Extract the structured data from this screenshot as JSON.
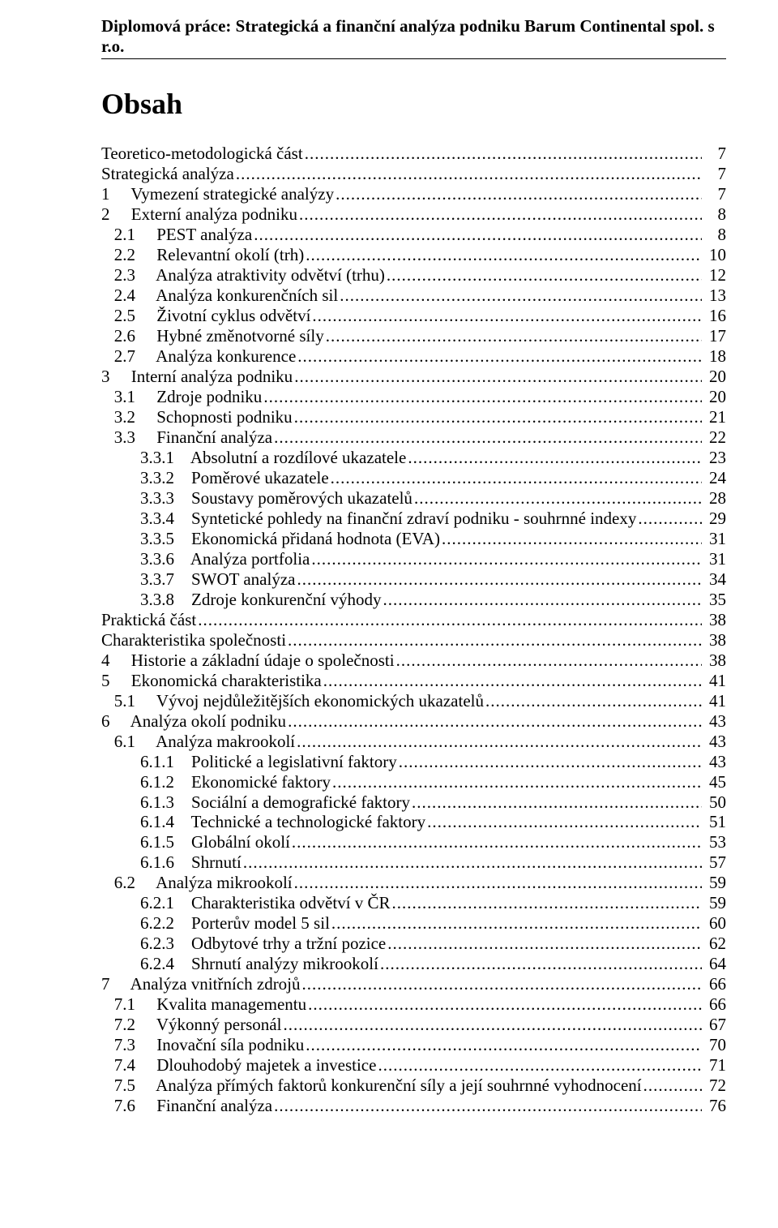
{
  "header": "Diplomová práce: Strategická a finanční analýza podniku Barum Continental spol. s r.o.",
  "title": "Obsah",
  "fonts": {
    "family": "Times New Roman",
    "header_size_pt": 16,
    "title_size_pt": 27,
    "toc_size_pt": 16,
    "color": "#000000",
    "background": "#ffffff"
  },
  "toc": [
    {
      "label": "Teoretico-metodologická část",
      "page": "7",
      "indent": "ind0"
    },
    {
      "label": "Strategická analýza",
      "page": "7",
      "indent": "ind0"
    },
    {
      "label": "1     Vymezení strategické analýzy",
      "page": "7",
      "indent": "ind1n"
    },
    {
      "label": "2     Externí analýza podniku",
      "page": "8",
      "indent": "ind1n"
    },
    {
      "label": "2.1",
      "title": "PEST analýza",
      "page": "8",
      "indent": "ind2n"
    },
    {
      "label": "2.2",
      "title": "Relevantní okolí (trh)",
      "page": "10",
      "indent": "ind2n"
    },
    {
      "label": "2.3",
      "title": "Analýza atraktivity odvětví (trhu)",
      "page": "12",
      "indent": "ind2n"
    },
    {
      "label": "2.4",
      "title": "Analýza konkurenčních sil",
      "page": "13",
      "indent": "ind2n"
    },
    {
      "label": "2.5",
      "title": "Životní cyklus odvětví",
      "page": "16",
      "indent": "ind2n"
    },
    {
      "label": "2.6",
      "title": "Hybné změnotvorné síly",
      "page": "17",
      "indent": "ind2n"
    },
    {
      "label": "2.7",
      "title": "Analýza konkurence",
      "page": "18",
      "indent": "ind2n"
    },
    {
      "label": "3     Interní analýza podniku",
      "page": "20",
      "indent": "ind1n"
    },
    {
      "label": "3.1",
      "title": "Zdroje podniku",
      "page": "20",
      "indent": "ind2n"
    },
    {
      "label": "3.2",
      "title": "Schopnosti podniku",
      "page": "21",
      "indent": "ind2n"
    },
    {
      "label": "3.3",
      "title": "Finanční analýza",
      "page": "22",
      "indent": "ind2n"
    },
    {
      "label": "3.3.1",
      "title": "Absolutní a rozdílové ukazatele",
      "page": "23",
      "indent": "indText"
    },
    {
      "label": "3.3.2",
      "title": "Poměrové ukazatele",
      "page": "24",
      "indent": "indText"
    },
    {
      "label": "3.3.3",
      "title": "Soustavy poměrových ukazatelů",
      "page": "28",
      "indent": "indText"
    },
    {
      "label": "3.3.4",
      "title": "Syntetické pohledy na finanční zdraví podniku - souhrnné indexy",
      "page": "29",
      "indent": "indText"
    },
    {
      "label": "3.3.5",
      "title": "Ekonomická přidaná hodnota (EVA)",
      "page": "31",
      "indent": "indText"
    },
    {
      "label": "3.3.6",
      "title": "Analýza portfolia",
      "page": "31",
      "indent": "indText"
    },
    {
      "label": "3.3.7",
      "title": "SWOT analýza",
      "page": "34",
      "indent": "indText"
    },
    {
      "label": "3.3.8",
      "title": "Zdroje konkurenční výhody",
      "page": "35",
      "indent": "indText"
    },
    {
      "label": "Praktická část",
      "page": "38",
      "indent": "ind0"
    },
    {
      "label": "Charakteristika společnosti",
      "page": "38",
      "indent": "ind0"
    },
    {
      "label": "4     Historie a základní údaje o společnosti",
      "page": "38",
      "indent": "ind1n"
    },
    {
      "label": "5     Ekonomická charakteristika",
      "page": "41",
      "indent": "ind1n"
    },
    {
      "label": "5.1",
      "title": "Vývoj nejdůležitějších ekonomických ukazatelů",
      "page": "41",
      "indent": "ind2n"
    },
    {
      "label": "6     Analýza okolí podniku",
      "page": "43",
      "indent": "ind1n"
    },
    {
      "label": "6.1",
      "title": "Analýza makrookolí",
      "page": "43",
      "indent": "ind2n"
    },
    {
      "label": "6.1.1",
      "title": "Politické a legislativní faktory",
      "page": "43",
      "indent": "indText"
    },
    {
      "label": "6.1.2",
      "title": "Ekonomické faktory",
      "page": "45",
      "indent": "indText"
    },
    {
      "label": "6.1.3",
      "title": "Sociální a demografické faktory",
      "page": "50",
      "indent": "indText"
    },
    {
      "label": "6.1.4",
      "title": "Technické a technologické faktory",
      "page": "51",
      "indent": "indText"
    },
    {
      "label": "6.1.5",
      "title": "Globální okolí",
      "page": "53",
      "indent": "indText"
    },
    {
      "label": "6.1.6",
      "title": "Shrnutí",
      "page": "57",
      "indent": "indText"
    },
    {
      "label": "6.2",
      "title": "Analýza mikrookolí",
      "page": "59",
      "indent": "ind2n"
    },
    {
      "label": "6.2.1",
      "title": "Charakteristika odvětví v ČR",
      "page": "59",
      "indent": "indText"
    },
    {
      "label": "6.2.2",
      "title": "Porterův model 5 sil",
      "page": "60",
      "indent": "indText"
    },
    {
      "label": "6.2.3",
      "title": "Odbytové trhy a tržní pozice",
      "page": "62",
      "indent": "indText"
    },
    {
      "label": "6.2.4",
      "title": "Shrnutí analýzy mikrookolí",
      "page": "64",
      "indent": "indText"
    },
    {
      "label": "7     Analýza vnitřních zdrojů",
      "page": "66",
      "indent": "ind1n"
    },
    {
      "label": "7.1",
      "title": "Kvalita managementu",
      "page": "66",
      "indent": "ind2n"
    },
    {
      "label": "7.2",
      "title": "Výkonný personál",
      "page": "67",
      "indent": "ind2n"
    },
    {
      "label": "7.3",
      "title": "Inovační síla podniku",
      "page": "70",
      "indent": "ind2n"
    },
    {
      "label": "7.4",
      "title": "Dlouhodobý majetek a investice",
      "page": "71",
      "indent": "ind2n"
    },
    {
      "label": "7.5",
      "title": "Analýza přímých faktorů konkurenční síly a její souhrnné vyhodnocení",
      "page": "72",
      "indent": "ind2n"
    },
    {
      "label": "7.6",
      "title": "Finanční analýza",
      "page": "76",
      "indent": "ind2n"
    }
  ]
}
